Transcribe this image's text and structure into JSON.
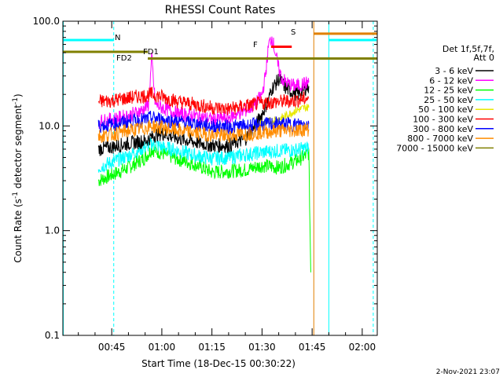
{
  "chart_data": {
    "type": "line",
    "title": "RHESSI Count Rates",
    "xlabel": "Start Time (18-Dec-15 00:30:22)",
    "ylabel_main": "Count Rate (s",
    "ylabel_sup1": "-1",
    "ylabel_mid": " detector segment",
    "ylabel_sup2": "-1",
    "ylabel_end": ")",
    "yscale": "log",
    "ylim": [
      0.1,
      100
    ],
    "xlim_minutes": [
      30.37,
      124.5
    ],
    "xticks": [
      {
        "label": "00:45",
        "minutes": 45
      },
      {
        "label": "01:00",
        "minutes": 60
      },
      {
        "label": "01:15",
        "minutes": 75
      },
      {
        "label": "01:30",
        "minutes": 90
      },
      {
        "label": "01:45",
        "minutes": 105
      },
      {
        "label": "02:00",
        "minutes": 120
      }
    ],
    "yticks": [
      {
        "label": "100.0",
        "value": 100
      },
      {
        "label": "10.0",
        "value": 10
      },
      {
        "label": "1.0",
        "value": 1
      },
      {
        "label": "0.1",
        "value": 0.1
      }
    ],
    "legend_header": [
      "Det 1f,5f,7f,",
      "Att 0"
    ],
    "series": [
      {
        "name": "3 - 6 keV",
        "color": "#000000",
        "points": [
          [
            41,
            6.0
          ],
          [
            45,
            6.3
          ],
          [
            50,
            6.8
          ],
          [
            55,
            7.2
          ],
          [
            58,
            8.2
          ],
          [
            60,
            8.5
          ],
          [
            65,
            7.6
          ],
          [
            70,
            7.0
          ],
          [
            75,
            6.5
          ],
          [
            80,
            6.5
          ],
          [
            85,
            7.5
          ],
          [
            88,
            10
          ],
          [
            90,
            13
          ],
          [
            92,
            18
          ],
          [
            93,
            23
          ],
          [
            94,
            25
          ],
          [
            95,
            28
          ],
          [
            96,
            26
          ],
          [
            97,
            23
          ],
          [
            99,
            21
          ],
          [
            101,
            20
          ],
          [
            103,
            23
          ],
          [
            104,
            24
          ]
        ]
      },
      {
        "name": "6 - 12 keV",
        "color": "#ff00ff",
        "points": [
          [
            41,
            11
          ],
          [
            45,
            11.5
          ],
          [
            50,
            12.5
          ],
          [
            54,
            14
          ],
          [
            56,
            16
          ],
          [
            57,
            45
          ],
          [
            58,
            16
          ],
          [
            60,
            15
          ],
          [
            65,
            13
          ],
          [
            70,
            12.5
          ],
          [
            75,
            11.5
          ],
          [
            80,
            12
          ],
          [
            85,
            14
          ],
          [
            88,
            16
          ],
          [
            90,
            20
          ],
          [
            91,
            30
          ],
          [
            92,
            60
          ],
          [
            93,
            70
          ],
          [
            94,
            50
          ],
          [
            95,
            35
          ],
          [
            96,
            28
          ],
          [
            98,
            25
          ],
          [
            100,
            24
          ],
          [
            102,
            25
          ],
          [
            104,
            26
          ]
        ]
      },
      {
        "name": "12 - 25 keV",
        "color": "#00ff00",
        "points": [
          [
            41,
            3.0
          ],
          [
            45,
            3.4
          ],
          [
            50,
            4.0
          ],
          [
            55,
            5.0
          ],
          [
            57,
            6.0
          ],
          [
            60,
            5.5
          ],
          [
            65,
            4.8
          ],
          [
            70,
            4.3
          ],
          [
            75,
            3.6
          ],
          [
            80,
            3.7
          ],
          [
            85,
            3.8
          ],
          [
            90,
            4.2
          ],
          [
            95,
            4.0
          ],
          [
            100,
            4.6
          ],
          [
            103,
            5.2
          ],
          [
            104,
            5.5
          ],
          [
            104.6,
            0.4
          ]
        ]
      },
      {
        "name": "25 - 50 keV",
        "color": "#00ffff",
        "points": [
          [
            41,
            4.0
          ],
          [
            45,
            4.5
          ],
          [
            50,
            5.2
          ],
          [
            55,
            6.3
          ],
          [
            57,
            6.8
          ],
          [
            60,
            6.3
          ],
          [
            65,
            5.8
          ],
          [
            70,
            5.2
          ],
          [
            75,
            4.9
          ],
          [
            80,
            5.0
          ],
          [
            85,
            5.3
          ],
          [
            90,
            5.6
          ],
          [
            95,
            5.8
          ],
          [
            100,
            5.9
          ],
          [
            104,
            6.2
          ]
        ]
      },
      {
        "name": "50 - 100 keV",
        "color": "#e8e800",
        "points": [
          [
            88,
            10
          ],
          [
            92,
            11
          ],
          [
            96,
            12
          ],
          [
            100,
            14
          ],
          [
            103,
            15
          ],
          [
            104,
            15
          ]
        ]
      },
      {
        "name": "100 - 300 keV",
        "color": "#ff0000",
        "points": [
          [
            41,
            17
          ],
          [
            45,
            17.5
          ],
          [
            50,
            18.5
          ],
          [
            55,
            19.5
          ],
          [
            57,
            20
          ],
          [
            60,
            19
          ],
          [
            65,
            17
          ],
          [
            70,
            16
          ],
          [
            75,
            15
          ],
          [
            80,
            14.5
          ],
          [
            85,
            15.5
          ],
          [
            90,
            16.5
          ],
          [
            95,
            17
          ],
          [
            100,
            17.5
          ],
          [
            104,
            18.5
          ]
        ]
      },
      {
        "name": "300 - 800 keV",
        "color": "#0000ff",
        "points": [
          [
            41,
            10
          ],
          [
            45,
            10.3
          ],
          [
            50,
            11
          ],
          [
            55,
            11.5
          ],
          [
            57,
            12
          ],
          [
            60,
            11.5
          ],
          [
            65,
            11
          ],
          [
            70,
            10.5
          ],
          [
            75,
            10
          ],
          [
            80,
            9.8
          ],
          [
            85,
            10
          ],
          [
            90,
            10.3
          ],
          [
            95,
            10.5
          ],
          [
            100,
            10.3
          ],
          [
            104,
            10.5
          ]
        ]
      },
      {
        "name": "800 - 7000 keV",
        "color": "#ff8c00",
        "points": [
          [
            41,
            8.0
          ],
          [
            45,
            8.3
          ],
          [
            50,
            9.0
          ],
          [
            55,
            9.5
          ],
          [
            57,
            10
          ],
          [
            60,
            9.6
          ],
          [
            65,
            9.0
          ],
          [
            70,
            8.6
          ],
          [
            75,
            8.2
          ],
          [
            80,
            8.1
          ],
          [
            85,
            8.4
          ],
          [
            90,
            8.7
          ],
          [
            95,
            9.0
          ],
          [
            100,
            9.1
          ],
          [
            104,
            9.3
          ]
        ]
      },
      {
        "name": "7000 - 15000 keV",
        "color": "#808000",
        "points": []
      }
    ],
    "vertical_lines": [
      {
        "minutes": 30.5,
        "color": "#00ffff",
        "style": "solid"
      },
      {
        "minutes": 45.6,
        "color": "#00ffff",
        "style": "dashed"
      },
      {
        "minutes": 105.5,
        "color": "#e08000",
        "style": "solid"
      },
      {
        "minutes": 110,
        "color": "#00ffff",
        "style": "solid"
      },
      {
        "minutes": 123.3,
        "color": "#00ffff",
        "style": "dashed"
      }
    ],
    "flags": [
      {
        "label": "N",
        "color": "#00ffff",
        "start": 30.5,
        "end": 45.6,
        "value": 66
      },
      {
        "label": "FD1",
        "color": "#808000",
        "start": 30.5,
        "end": 55.8,
        "value": 51
      },
      {
        "label": "FD2",
        "color": "#808000",
        "start": 55.8,
        "end": 125,
        "value": 44
      },
      {
        "label": "F",
        "color": "#ff0000",
        "start": 92.7,
        "end": 98.9,
        "value": 57
      },
      {
        "label": "S",
        "color": "#e08000",
        "start": 105.5,
        "end": 125,
        "value": 76
      },
      {
        "label": "",
        "color": "#00ffff",
        "start": 110,
        "end": 124.3,
        "value": 66
      }
    ]
  },
  "footer": {
    "timestamp": "2-Nov-2021 23:07"
  }
}
